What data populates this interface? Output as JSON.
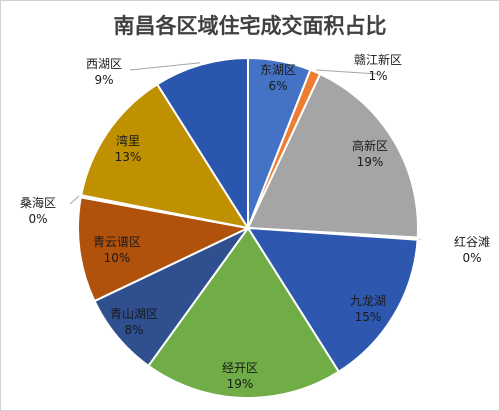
{
  "chart_data": {
    "type": "pie",
    "title": "南昌各区域住宅成交面积占比",
    "slices": [
      {
        "name": "东湖区",
        "value": 6,
        "label": "6%",
        "color": "#4472c4"
      },
      {
        "name": "赣江新区",
        "value": 1,
        "label": "1%",
        "color": "#ed7d31"
      },
      {
        "name": "高新区",
        "value": 19,
        "label": "19%",
        "color": "#a5a5a5"
      },
      {
        "name": "红谷滩",
        "value": 0.2,
        "label": "0%",
        "color": "#ffc000"
      },
      {
        "name": "九龙湖",
        "value": 15,
        "label": "15%",
        "color": "#2e58b0"
      },
      {
        "name": "经开区",
        "value": 19,
        "label": "19%",
        "color": "#70ad47"
      },
      {
        "name": "青山湖区",
        "value": 8,
        "label": "8%",
        "color": "#2f4f8f"
      },
      {
        "name": "青云谱区",
        "value": 10,
        "label": "10%",
        "color": "#b1520c"
      },
      {
        "name": "桑海区",
        "value": 0.2,
        "label": "0%",
        "color": "#808080"
      },
      {
        "name": "湾里",
        "value": 13,
        "label": "13%",
        "color": "#bf9000"
      },
      {
        "name": "西湖区",
        "value": 9,
        "label": "9%",
        "color": "#2a56ad"
      }
    ]
  }
}
